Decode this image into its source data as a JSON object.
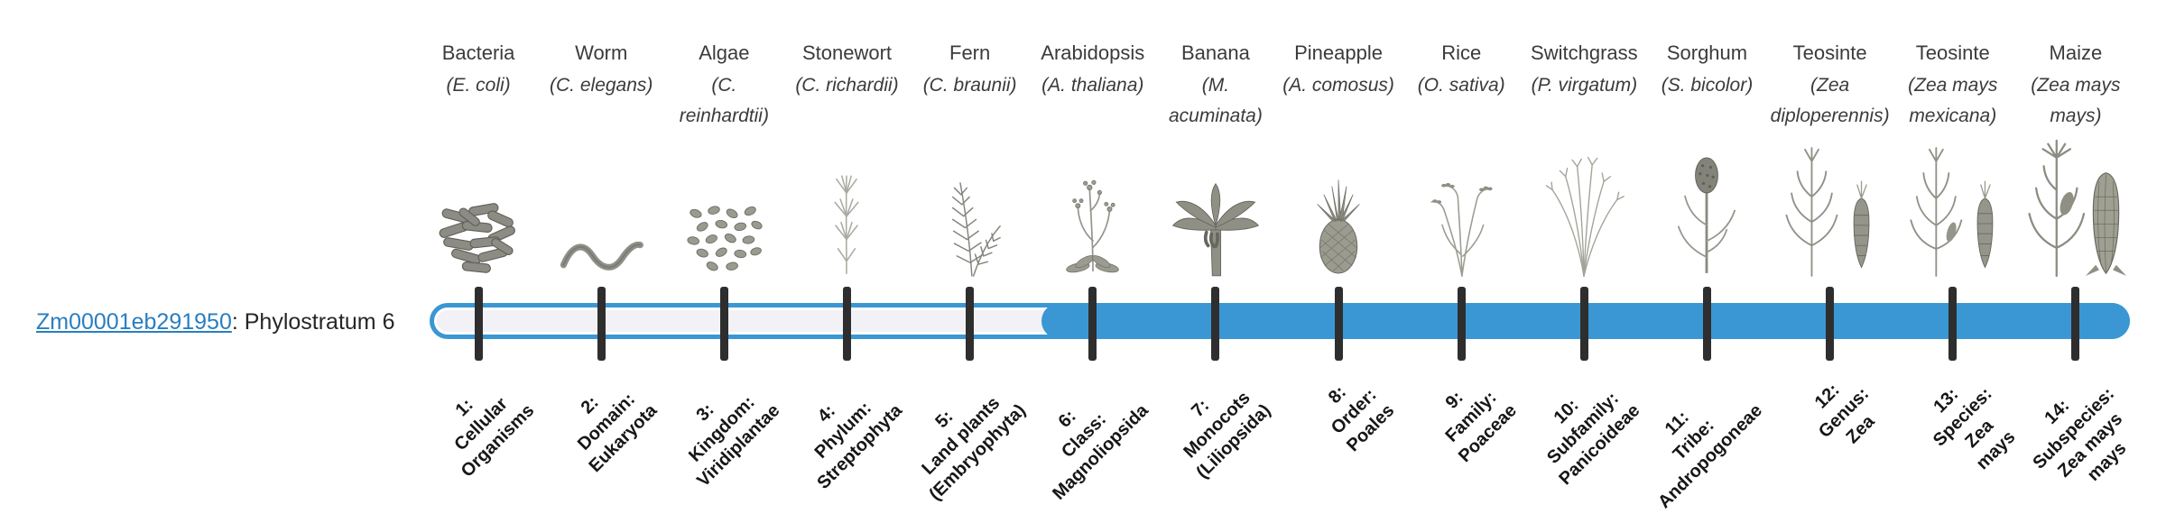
{
  "gene": {
    "id": "Zm00001eb291950",
    "suffix": ": Phylostratum 6"
  },
  "timeline": {
    "bar_color": "#3a97d4",
    "track_color": "#f1f1f6",
    "fill_start_percent": 36,
    "filled_from_stratum": 6,
    "organisms": [
      {
        "common": "Bacteria",
        "scientific": "(E. coli)",
        "icon": "bacteria",
        "stratum": "1:\nCellular\nOrganisms"
      },
      {
        "common": "Worm",
        "scientific": "(C. elegans)",
        "icon": "worm",
        "stratum": "2:\nDomain:\nEukaryota"
      },
      {
        "common": "Algae",
        "scientific": "(C. reinhardtii)",
        "icon": "algae",
        "stratum": "3:\nKingdom:\nViridiplantae"
      },
      {
        "common": "Stonewort",
        "scientific": "(C. richardii)",
        "icon": "stonewort",
        "stratum": "4:\nPhylum:\nStreptophyta"
      },
      {
        "common": "Fern",
        "scientific": "(C. braunii)",
        "icon": "fern",
        "stratum": "5:\nLand plants\n(Embryophyta)"
      },
      {
        "common": "Arabidopsis",
        "scientific": "(A. thaliana)",
        "icon": "arabidopsis",
        "stratum": "6:\nClass:\nMagnoliopsida"
      },
      {
        "common": "Banana",
        "scientific": "(M. acuminata)",
        "icon": "banana",
        "stratum": "7:\nMonocots\n(Liliopsida)"
      },
      {
        "common": "Pineapple",
        "scientific": "(A. comosus)",
        "icon": "pineapple",
        "stratum": "8:\nOrder:\nPoales"
      },
      {
        "common": "Rice",
        "scientific": "(O. sativa)",
        "icon": "rice",
        "stratum": "9:\nFamily:\nPoaceae"
      },
      {
        "common": "Switchgrass",
        "scientific": "(P. virgatum)",
        "icon": "switchgrass",
        "stratum": "10:\nSubfamily:\nPanicoideae"
      },
      {
        "common": "Sorghum",
        "scientific": "(S. bicolor)",
        "icon": "sorghum",
        "stratum": "11:\nTribe:\nAndropogoneae"
      },
      {
        "common": "Teosinte",
        "scientific": "(Zea diploperennis)",
        "icon": "teosinte-diploperennis",
        "stratum": "12:\nGenus:\nZea"
      },
      {
        "common": "Teosinte",
        "scientific": "(Zea mays mexicana)",
        "icon": "teosinte-mexicana",
        "stratum": "13:\nSpecies:\nZea\nmays"
      },
      {
        "common": "Maize",
        "scientific": "(Zea mays mays)",
        "icon": "maize",
        "stratum": "14:\nSubspecies:\nZea mays\nmays"
      }
    ]
  }
}
